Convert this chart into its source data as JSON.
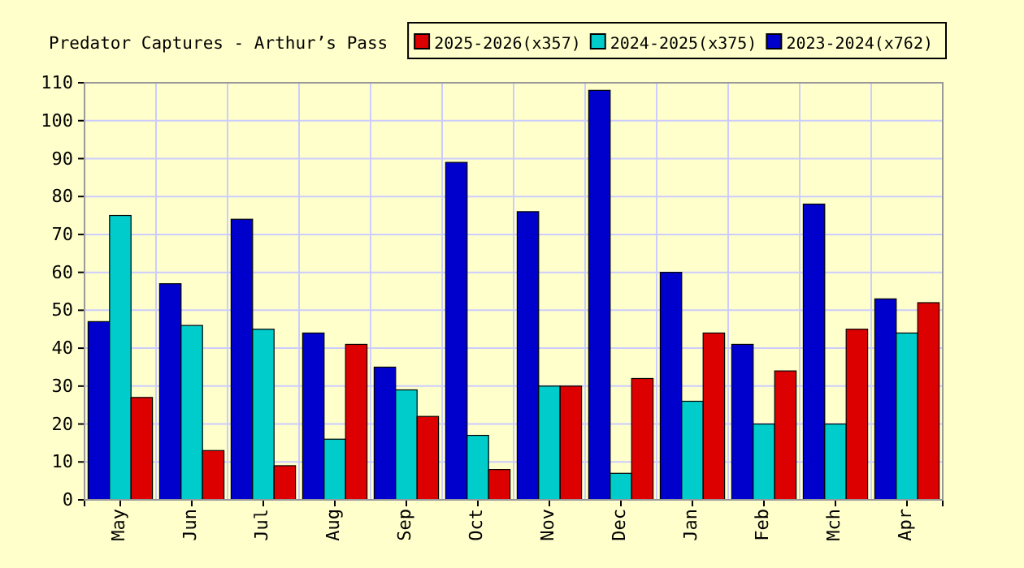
{
  "chart_data": {
    "type": "bar",
    "title": "Predator Captures - Arthur’s Pass",
    "categories": [
      "May",
      "Jun",
      "Jul",
      "Aug",
      "Sep",
      "Oct",
      "Nov",
      "Dec",
      "Jan",
      "Feb",
      "Mch",
      "Apr"
    ],
    "series": [
      {
        "name": "2023-2024(x762)",
        "color": "#0000cc",
        "values": [
          47,
          57,
          74,
          44,
          35,
          89,
          76,
          108,
          60,
          41,
          78,
          53
        ]
      },
      {
        "name": "2024-2025(x375)",
        "color": "#00cccc",
        "values": [
          75,
          46,
          45,
          16,
          29,
          17,
          30,
          7,
          26,
          20,
          20,
          44
        ]
      },
      {
        "name": "2025-2026(x357)",
        "color": "#dd0000",
        "values": [
          27,
          13,
          9,
          41,
          22,
          8,
          30,
          32,
          44,
          34,
          45,
          52
        ]
      }
    ],
    "ylim": [
      0,
      110
    ],
    "yticks": [
      0,
      10,
      20,
      30,
      40,
      50,
      60,
      70,
      80,
      90,
      100,
      110
    ],
    "grid": true,
    "legend": "top right"
  }
}
